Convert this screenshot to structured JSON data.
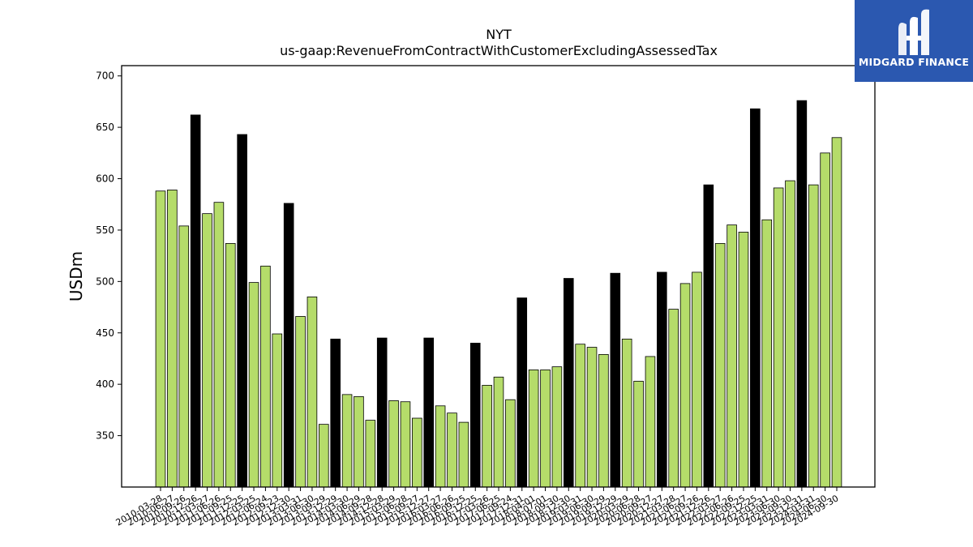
{
  "logo": {
    "text": "MIDGARD FINANCE"
  },
  "colors": {
    "bar": "#b5dc6a",
    "highlight": "#000000",
    "logo_bg": "#2b58b0"
  },
  "chart_data": {
    "type": "bar",
    "title": "NYT",
    "subtitle": "us-gaap:RevenueFromContractWithCustomerExcludingAssessedTax",
    "xlabel": "",
    "ylabel": "USDm",
    "ylim": [
      300,
      710
    ],
    "yticks": [
      350,
      400,
      450,
      500,
      550,
      600,
      650,
      700
    ],
    "categories": [
      "2010-03-28",
      "2010-06-27",
      "2010-09-26",
      "2010-12-26",
      "2011-03-27",
      "2011-06-26",
      "2011-09-25",
      "2011-12-25",
      "2012-03-25",
      "2012-06-24",
      "2012-09-23",
      "2012-12-30",
      "2013-03-31",
      "2013-06-30",
      "2013-09-29",
      "2013-12-29",
      "2014-03-30",
      "2014-06-29",
      "2014-09-28",
      "2014-12-28",
      "2015-03-29",
      "2015-06-28",
      "2015-09-27",
      "2015-12-27",
      "2016-03-27",
      "2016-06-26",
      "2016-09-25",
      "2016-12-25",
      "2017-03-26",
      "2017-06-25",
      "2017-09-24",
      "2017-12-31",
      "2018-04-01",
      "2018-07-01",
      "2018-09-30",
      "2018-12-30",
      "2019-03-31",
      "2019-06-30",
      "2019-09-29",
      "2019-12-29",
      "2020-03-29",
      "2020-06-28",
      "2020-09-27",
      "2020-12-27",
      "2021-03-28",
      "2021-06-27",
      "2021-09-26",
      "2021-12-26",
      "2022-03-27",
      "2022-06-26",
      "2022-09-25",
      "2022-12-25",
      "2023-03-31",
      "2023-06-30",
      "2023-09-30",
      "2023-12-31",
      "2024-03-31",
      "2024-06-30",
      "2024-09-30"
    ],
    "values": [
      588,
      589,
      554,
      662,
      566,
      577,
      537,
      643,
      499,
      515,
      449,
      576,
      466,
      485,
      361,
      444,
      390,
      388,
      365,
      445,
      384,
      383,
      367,
      445,
      379,
      372,
      363,
      440,
      399,
      407,
      385,
      484,
      414,
      414,
      417,
      503,
      439,
      436,
      429,
      508,
      444,
      403,
      427,
      509,
      473,
      498,
      509,
      594,
      537,
      555,
      548,
      668,
      560,
      591,
      598,
      676,
      594,
      625,
      640
    ],
    "highlighted": [
      false,
      false,
      false,
      true,
      false,
      false,
      false,
      true,
      false,
      false,
      false,
      true,
      false,
      false,
      false,
      true,
      false,
      false,
      false,
      true,
      false,
      false,
      false,
      true,
      false,
      false,
      false,
      true,
      false,
      false,
      false,
      true,
      false,
      false,
      false,
      true,
      false,
      false,
      false,
      true,
      false,
      false,
      false,
      true,
      false,
      false,
      false,
      true,
      false,
      false,
      false,
      true,
      false,
      false,
      false,
      true,
      false,
      false,
      false
    ],
    "grid": false,
    "legend": "none"
  }
}
